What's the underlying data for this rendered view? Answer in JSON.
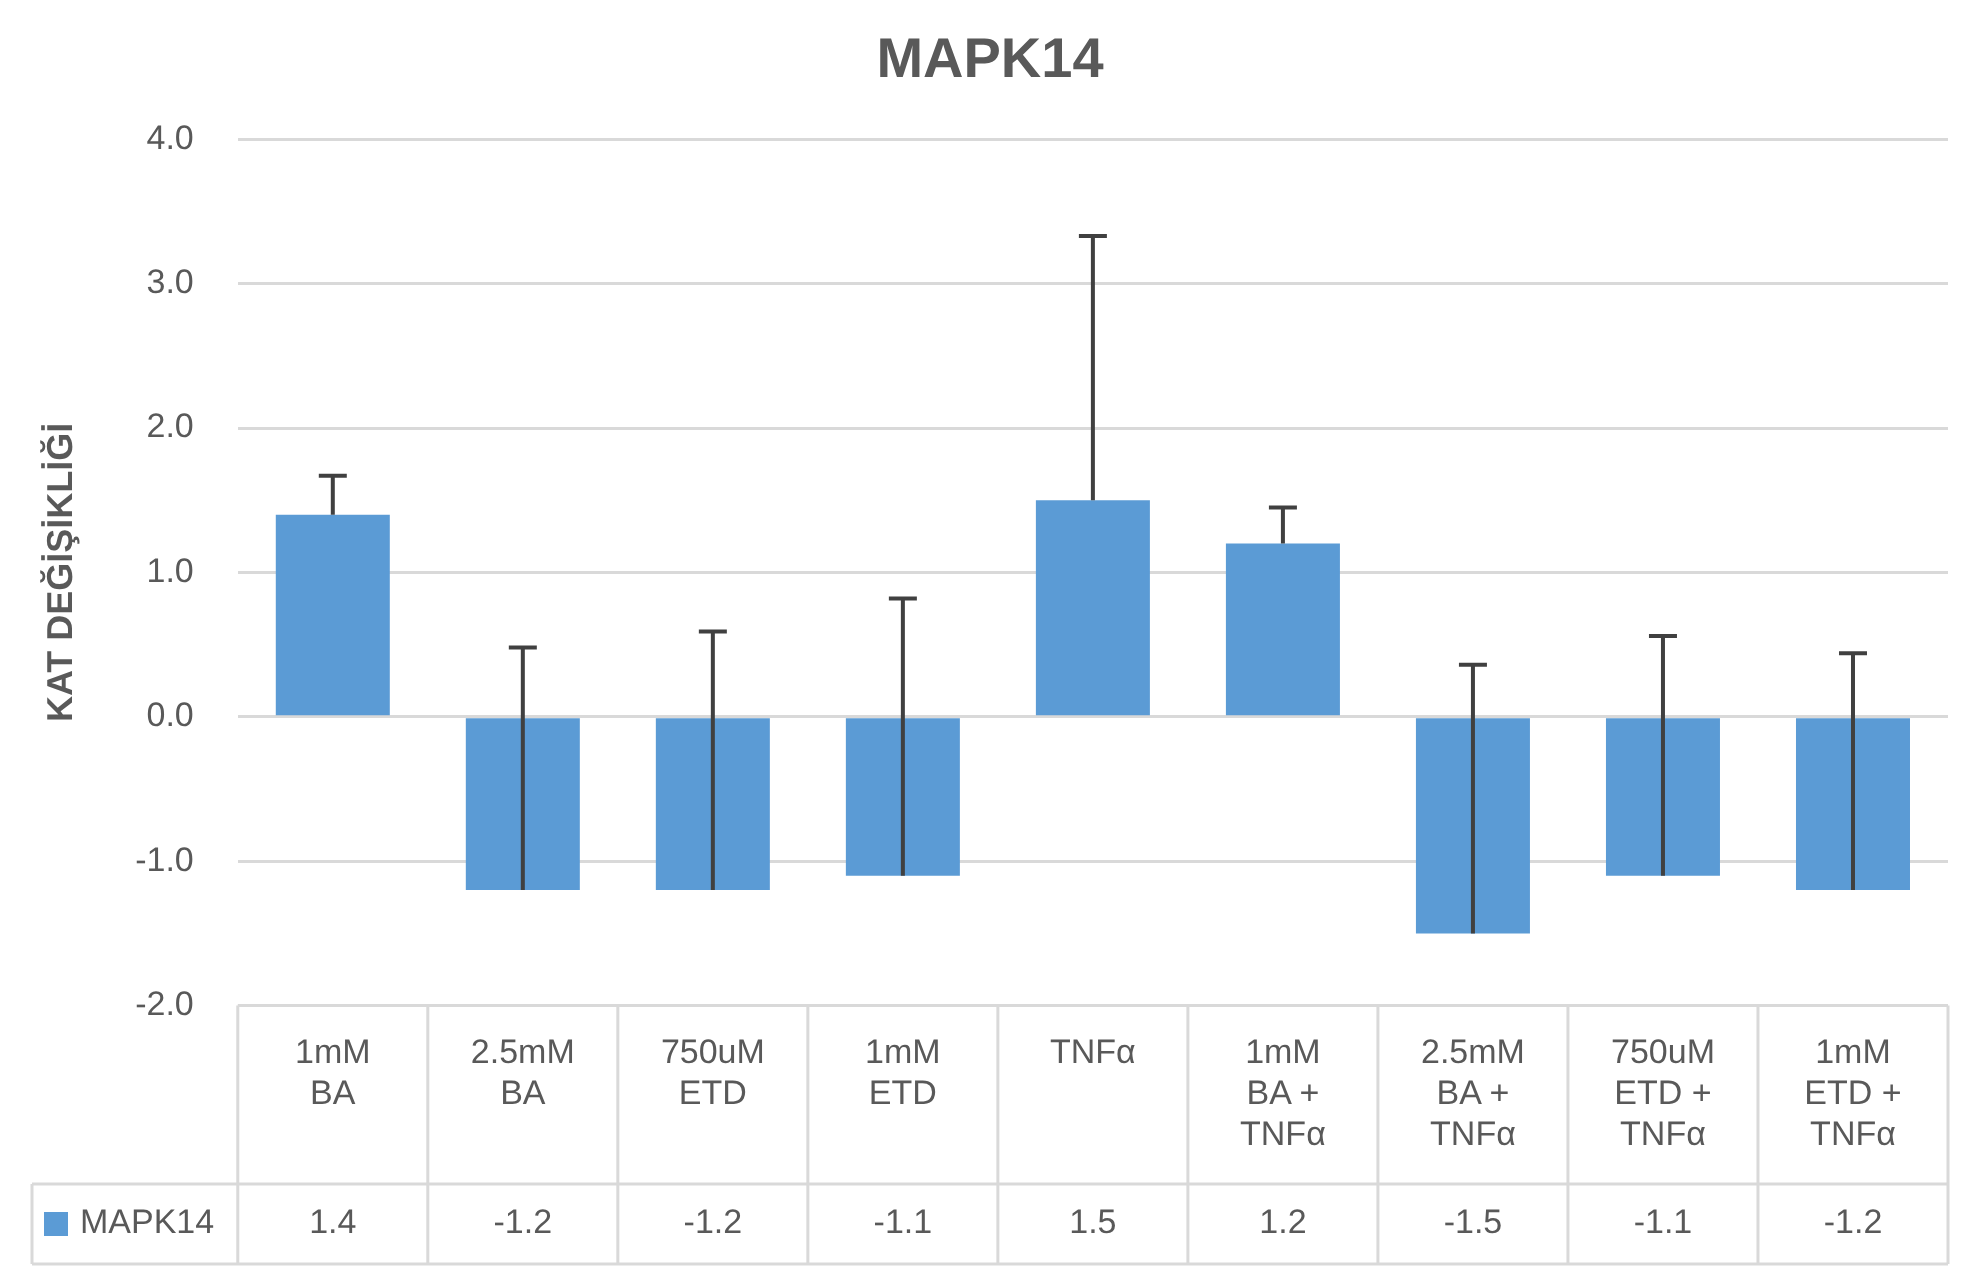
{
  "chart_data": {
    "type": "bar",
    "title": "MAPK14",
    "ylabel": "KAT DEĞİŞİKLİĞİ",
    "categories": [
      "1mM BA",
      "2.5mM BA",
      "750uM ETD",
      "1mM ETD",
      "TNFα",
      "1mM BA + TNFα",
      "2.5mM BA + TNFα",
      "750uM ETD + TNFα",
      "1mM ETD + TNFα"
    ],
    "series": [
      {
        "name": "MAPK14",
        "color": "#5b9bd5",
        "values": [
          1.4,
          -1.2,
          -1.2,
          -1.1,
          1.5,
          1.2,
          -1.5,
          -1.1,
          -1.2
        ],
        "errors": [
          [
            1.4,
            1.67
          ],
          [
            -1.2,
            0.48
          ],
          [
            -1.2,
            0.59
          ],
          [
            -1.1,
            0.82
          ],
          [
            1.5,
            3.33
          ],
          [
            1.2,
            1.45
          ],
          [
            -1.5,
            0.36
          ],
          [
            -1.1,
            0.56
          ],
          [
            -1.2,
            0.44
          ]
        ]
      }
    ],
    "ylim": [
      -2,
      4
    ],
    "yticks": [
      {
        "value": -2,
        "label": "-2.0"
      },
      {
        "value": -1,
        "label": "-1.0"
      },
      {
        "value": 0,
        "label": "0.0"
      },
      {
        "value": 1,
        "label": "1.0"
      },
      {
        "value": 2,
        "label": "2.0"
      },
      {
        "value": 3,
        "label": "3.0"
      },
      {
        "value": 4,
        "label": "4.0"
      }
    ],
    "grid": "y",
    "legend": "bottom",
    "data_labels": true
  }
}
